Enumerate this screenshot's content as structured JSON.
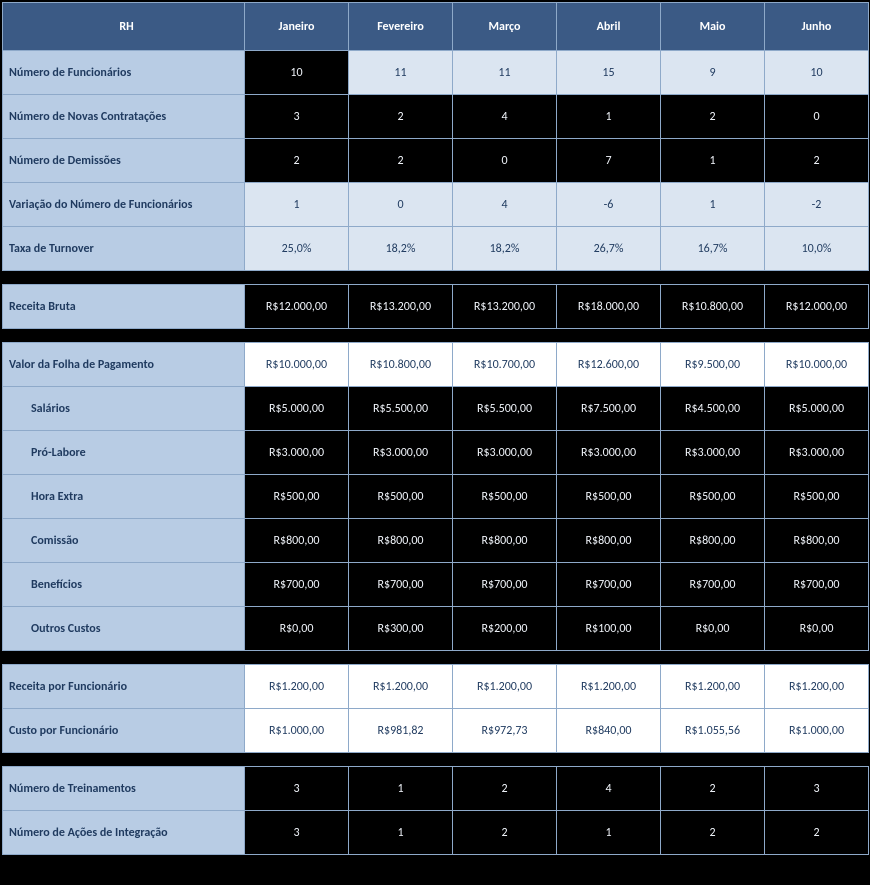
{
  "colors": {
    "header_bg": "#3b5a85",
    "header_fg": "#ffffff",
    "label_bg": "#b8cce4",
    "label_fg": "#1f3a5f",
    "light_bg": "#dbe5f1",
    "white_bg": "#ffffff",
    "dark_bg": "#000000",
    "border": "#8ea9c9"
  },
  "header": {
    "title": "RH",
    "months": [
      "Janeiro",
      "Fevereiro",
      "Março",
      "Abril",
      "Maio",
      "Junho"
    ]
  },
  "sections": [
    {
      "rows": [
        {
          "label": "Número de Funcionários",
          "style": "dark_then_light",
          "values": [
            "10",
            "11",
            "11",
            "15",
            "9",
            "10"
          ]
        },
        {
          "label": "Número de Novas Contratações",
          "style": "dark",
          "values": [
            "3",
            "2",
            "4",
            "1",
            "2",
            "0"
          ]
        },
        {
          "label": "Número de Demissões",
          "style": "dark",
          "values": [
            "2",
            "2",
            "0",
            "7",
            "1",
            "2"
          ]
        },
        {
          "label": "Variação do Número de Funcionários",
          "style": "light",
          "values": [
            "1",
            "0",
            "4",
            "-6",
            "1",
            "-2"
          ]
        },
        {
          "label": "Taxa de Turnover",
          "style": "light",
          "values": [
            "25,0%",
            "18,2%",
            "18,2%",
            "26,7%",
            "16,7%",
            "10,0%"
          ]
        }
      ]
    },
    {
      "rows": [
        {
          "label": "Receita Bruta",
          "style": "dark",
          "values": [
            "R$12.000,00",
            "R$13.200,00",
            "R$13.200,00",
            "R$18.000,00",
            "R$10.800,00",
            "R$12.000,00"
          ]
        }
      ]
    },
    {
      "rows": [
        {
          "label": "Valor da Folha de Pagamento",
          "style": "white",
          "values": [
            "R$10.000,00",
            "R$10.800,00",
            "R$10.700,00",
            "R$12.600,00",
            "R$9.500,00",
            "R$10.000,00"
          ]
        },
        {
          "label": "Salários",
          "indent": true,
          "style": "dark",
          "values": [
            "R$5.000,00",
            "R$5.500,00",
            "R$5.500,00",
            "R$7.500,00",
            "R$4.500,00",
            "R$5.000,00"
          ]
        },
        {
          "label": "Pró-Labore",
          "indent": true,
          "style": "dark",
          "values": [
            "R$3.000,00",
            "R$3.000,00",
            "R$3.000,00",
            "R$3.000,00",
            "R$3.000,00",
            "R$3.000,00"
          ]
        },
        {
          "label": "Hora Extra",
          "indent": true,
          "style": "dark",
          "values": [
            "R$500,00",
            "R$500,00",
            "R$500,00",
            "R$500,00",
            "R$500,00",
            "R$500,00"
          ]
        },
        {
          "label": "Comissão",
          "indent": true,
          "style": "dark",
          "values": [
            "R$800,00",
            "R$800,00",
            "R$800,00",
            "R$800,00",
            "R$800,00",
            "R$800,00"
          ]
        },
        {
          "label": "Benefícios",
          "indent": true,
          "style": "dark",
          "values": [
            "R$700,00",
            "R$700,00",
            "R$700,00",
            "R$700,00",
            "R$700,00",
            "R$700,00"
          ]
        },
        {
          "label": "Outros Custos",
          "indent": true,
          "style": "dark",
          "values": [
            "R$0,00",
            "R$300,00",
            "R$200,00",
            "R$100,00",
            "R$0,00",
            "R$0,00"
          ]
        }
      ]
    },
    {
      "rows": [
        {
          "label": "Receita por Funcionário",
          "style": "white",
          "values": [
            "R$1.200,00",
            "R$1.200,00",
            "R$1.200,00",
            "R$1.200,00",
            "R$1.200,00",
            "R$1.200,00"
          ]
        },
        {
          "label": "Custo por Funcionário",
          "style": "white",
          "values": [
            "R$1.000,00",
            "R$981,82",
            "R$972,73",
            "R$840,00",
            "R$1.055,56",
            "R$1.000,00"
          ]
        }
      ]
    },
    {
      "rows": [
        {
          "label": "Número de Treinamentos",
          "style": "dark",
          "values": [
            "3",
            "1",
            "2",
            "4",
            "2",
            "3"
          ]
        },
        {
          "label": "Número de Ações de Integração",
          "style": "dark",
          "values": [
            "3",
            "1",
            "2",
            "1",
            "2",
            "2"
          ]
        }
      ]
    }
  ]
}
